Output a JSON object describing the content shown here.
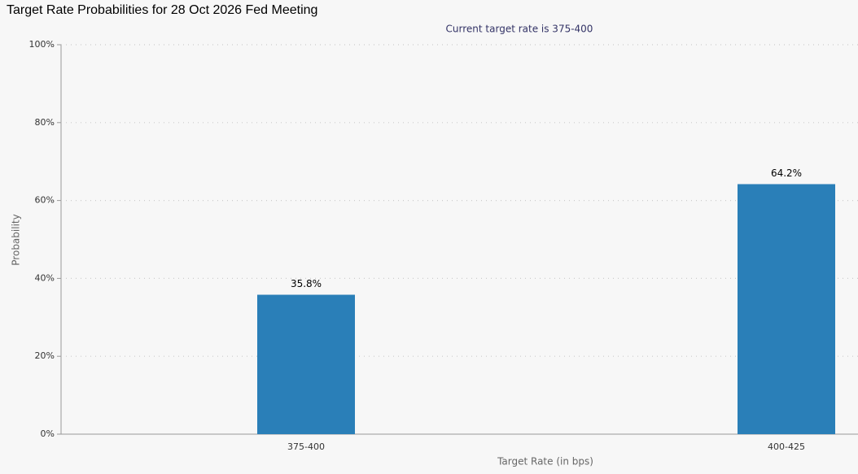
{
  "chart_data": {
    "type": "bar",
    "title": "Target Rate Probabilities for 28 Oct 2026 Fed Meeting",
    "subtitle": "Current target rate is 375-400",
    "x_label": "Target Rate (in bps)",
    "y_label": "Probability",
    "categories": [
      "375-400",
      "400-425"
    ],
    "values": [
      35.8,
      64.2
    ],
    "value_labels": [
      "35.8%",
      "64.2%"
    ],
    "color": "#2a7fb8",
    "ylim": [
      0,
      100
    ],
    "yticks": [
      {
        "value": 0,
        "label": "0%"
      },
      {
        "value": 20,
        "label": "20%"
      },
      {
        "value": 40,
        "label": "40%"
      },
      {
        "value": 60,
        "label": "60%"
      },
      {
        "value": 80,
        "label": "80%"
      },
      {
        "value": 100,
        "label": "100%"
      }
    ],
    "grid": true
  }
}
